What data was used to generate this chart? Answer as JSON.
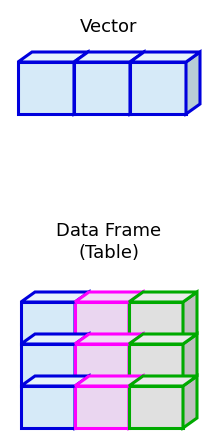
{
  "title_vector": "Vector",
  "title_dataframe": "Data Frame\n(Table)",
  "title_fontsize": 13,
  "bg_color": "#ffffff",
  "vector_color_face": "#d6eaf8",
  "vector_color_edge": "#0000dd",
  "vector_color_top": "#e8f4fb",
  "vector_color_side": "#b8cdd6",
  "df_col_colors": [
    {
      "face": "#d6eaf8",
      "edge": "#0000dd",
      "top": "#e8f4fb",
      "side": "#b8cdd6"
    },
    {
      "face": "#ead6f0",
      "edge": "#ff00ff",
      "top": "#f0e0f5",
      "side": "#d0b0da"
    },
    {
      "face": "#e0e0e0",
      "edge": "#00aa00",
      "top": "#ebebeb",
      "side": "#c0c0c0"
    }
  ],
  "vector_n": 3,
  "df_rows": 3,
  "df_cols": 3,
  "lw": 2.2
}
